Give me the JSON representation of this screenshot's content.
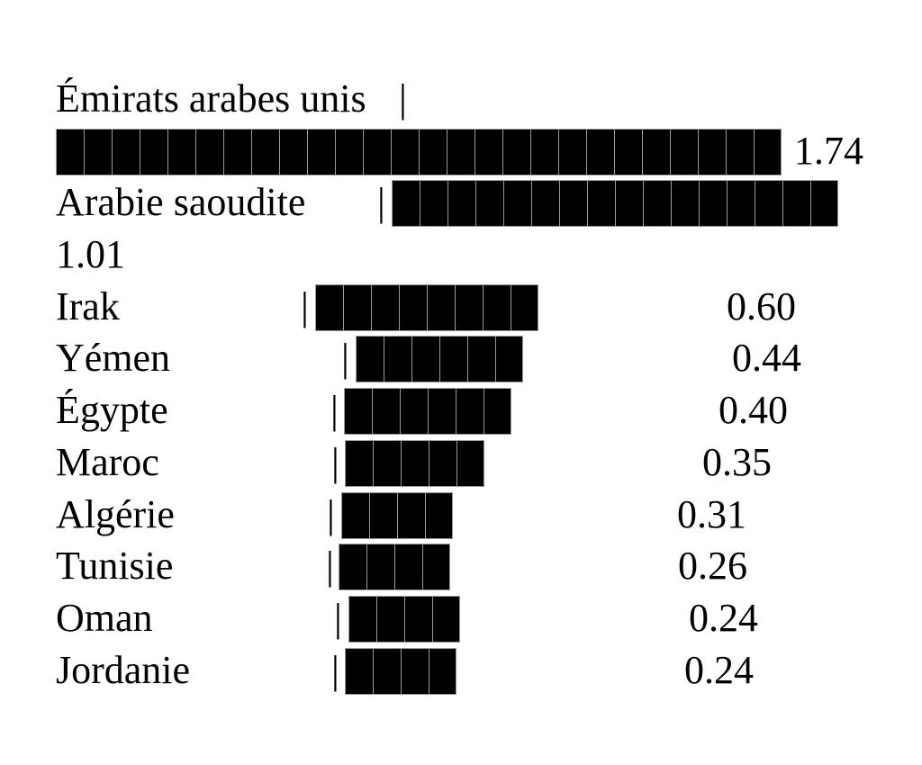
{
  "chart_data": {
    "type": "bar",
    "orientation": "horizontal",
    "style": "text-block-bars",
    "block_char": "█",
    "separator_char": "|",
    "title": "",
    "legend": "none",
    "grid": "off",
    "categories": [
      "Émirats arabes unis",
      "Arabie saoudite",
      "Irak",
      "Yémen",
      "Égypte",
      "Maroc",
      "Algérie",
      "Tunisie",
      "Oman",
      "Jordanie"
    ],
    "values": [
      1.74,
      1.01,
      0.6,
      0.44,
      0.4,
      0.35,
      0.31,
      0.26,
      0.24,
      0.24
    ],
    "value_labels": [
      "1.74",
      "1.01",
      "0.60",
      "0.44",
      "0.40",
      "0.35",
      "0.31",
      "0.26",
      "0.24",
      "0.24"
    ],
    "bar_blocks": [
      26,
      16,
      8,
      6,
      6,
      5,
      4,
      4,
      4,
      4
    ],
    "wrap_notes": {
      "bar_wrapped_to_next_line": "Émirats arabes unis",
      "value_wrapped_to_next_line": "Arabie saoudite"
    }
  },
  "colors": {
    "background": "#ffffff",
    "text": "#000000",
    "bar": "#000000",
    "block_seam": "#9a9a9a"
  }
}
